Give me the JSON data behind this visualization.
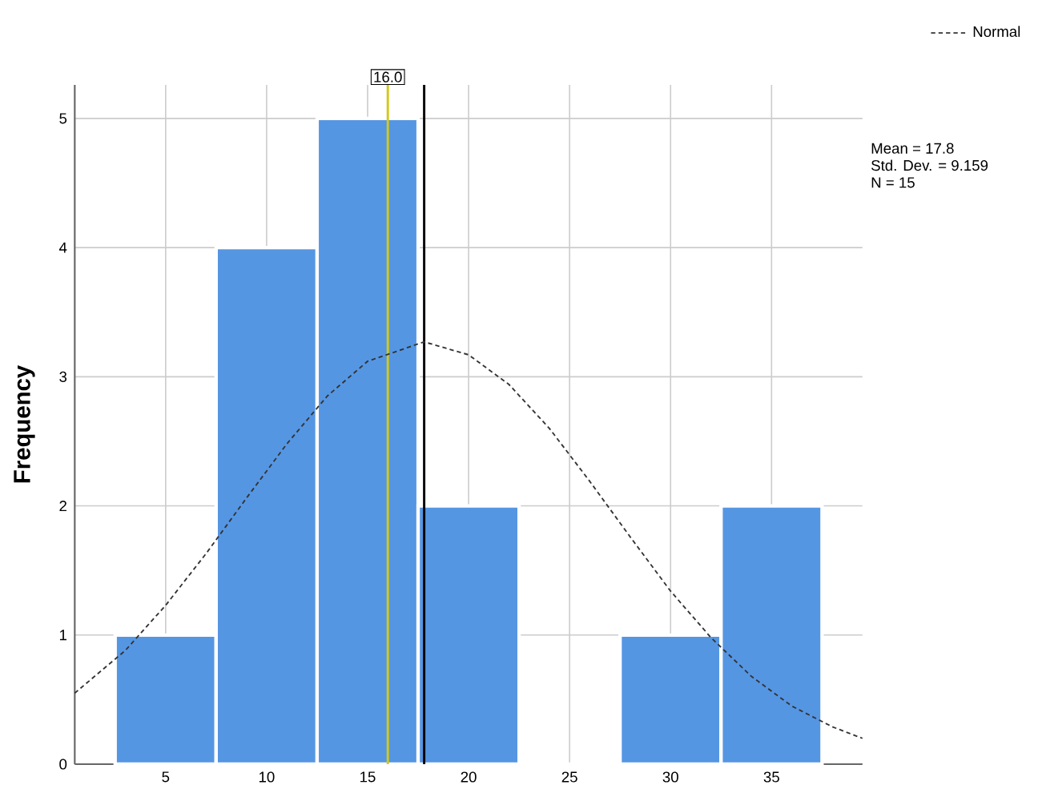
{
  "chart_data": {
    "type": "histogram",
    "ylabel": "Frequency",
    "bins": [
      2.5,
      7.5,
      12.5,
      17.5,
      22.5,
      27.5,
      32.5,
      37.5
    ],
    "values": [
      1,
      4,
      5,
      2,
      0,
      1,
      2
    ],
    "color": "#5596e3",
    "series": [
      {
        "name": "Normal",
        "type": "line",
        "color": "#333333",
        "line_style": "dashed",
        "x": [
          0.5,
          3,
          5,
          7,
          9,
          11,
          13,
          15,
          17.8,
          20,
          22,
          24,
          26,
          28,
          30,
          32,
          34,
          36,
          38,
          39.5
        ],
        "values": [
          0.55,
          0.88,
          1.23,
          1.63,
          2.06,
          2.48,
          2.85,
          3.12,
          3.27,
          3.17,
          2.94,
          2.6,
          2.19,
          1.76,
          1.34,
          0.98,
          0.68,
          0.45,
          0.29,
          0.2
        ]
      }
    ],
    "xlim": [
      0.5,
      39.5
    ],
    "ylim": [
      0,
      5.26
    ],
    "xticks": [
      5,
      10,
      15,
      20,
      25,
      30,
      35
    ],
    "yticks": [
      0,
      1,
      2,
      3,
      4,
      5
    ],
    "ref_lines": [
      {
        "axis": "x",
        "value": 17.8,
        "color": "#000000"
      },
      {
        "axis": "x",
        "value": 16.0,
        "label": "16.0",
        "color": "#d4c81a"
      }
    ],
    "annotations": [
      "Mean = 17.8",
      "Std. Dev. = 9.159",
      "N = 15"
    ],
    "grid": true,
    "legend": "top right"
  }
}
